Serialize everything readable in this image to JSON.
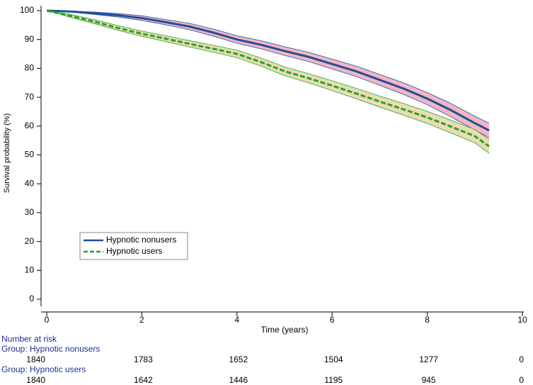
{
  "chart_data": {
    "type": "line",
    "y_label": "Survival probability (%)",
    "x_label": "Time (years)",
    "x": [
      0,
      0.5,
      1,
      1.5,
      2,
      2.5,
      3,
      3.5,
      4,
      4.5,
      5,
      5.5,
      6,
      6.5,
      7,
      7.5,
      8,
      8.5,
      9,
      9.3
    ],
    "xlim": [
      0,
      10
    ],
    "xticks": [
      0,
      2,
      4,
      6,
      8,
      10
    ],
    "ylim": [
      0,
      100
    ],
    "yticks": [
      0,
      10,
      20,
      30,
      40,
      50,
      60,
      70,
      80,
      90,
      100
    ],
    "legend": "bottom-left",
    "series": [
      {
        "name": "Hypnotic nonusers",
        "color": "#1f4e9c",
        "band_color": "#f4b6c2",
        "dash": false,
        "values": [
          100,
          99.7,
          99.1,
          98.4,
          97.4,
          96,
          94.5,
          92.4,
          90,
          88.2,
          86,
          84,
          81.5,
          79,
          76,
          73,
          69.5,
          65.5,
          61,
          58.5
        ],
        "lower": [
          100,
          99.5,
          98.7,
          97.8,
          96.6,
          95.1,
          93.4,
          91.2,
          88.7,
          86.8,
          84.5,
          82.4,
          79.8,
          77.2,
          74.1,
          71,
          67.4,
          63.2,
          58.6,
          56
        ],
        "upper": [
          100,
          99.9,
          99.5,
          99,
          98.2,
          96.9,
          95.6,
          93.6,
          91.3,
          89.6,
          87.5,
          85.6,
          83.2,
          80.8,
          77.9,
          75,
          71.6,
          67.8,
          63.4,
          61
        ]
      },
      {
        "name": "Hypnotic users",
        "color": "#2ca02c",
        "band_color": "#e9ddb2",
        "dash": true,
        "values": [
          100,
          98.2,
          96.2,
          94,
          92,
          90.3,
          88.5,
          86.8,
          85,
          82.2,
          79,
          76.6,
          74,
          71.3,
          68.5,
          65.8,
          63,
          59.8,
          56.5,
          53
        ],
        "lower": [
          100,
          97.7,
          95.5,
          93.2,
          91.1,
          89.3,
          87.4,
          85.6,
          83.7,
          80.8,
          77.5,
          75,
          72.3,
          69.5,
          66.6,
          63.8,
          60.9,
          57.6,
          54.2,
          50.6
        ],
        "upper": [
          100,
          98.7,
          96.9,
          94.8,
          92.9,
          91.3,
          89.6,
          88,
          86.3,
          83.6,
          80.5,
          78.2,
          75.7,
          73.1,
          70.4,
          67.8,
          65.1,
          62,
          58.8,
          55.4
        ]
      }
    ],
    "risk_table": {
      "title": "Number at risk",
      "groups": [
        {
          "label": "Group: Hypnotic nonusers",
          "values": [
            1840,
            1783,
            1652,
            1504,
            1277,
            0
          ]
        },
        {
          "label": "Group: Hypnotic users",
          "values": [
            1840,
            1642,
            1446,
            1195,
            945,
            0
          ]
        }
      ]
    }
  }
}
